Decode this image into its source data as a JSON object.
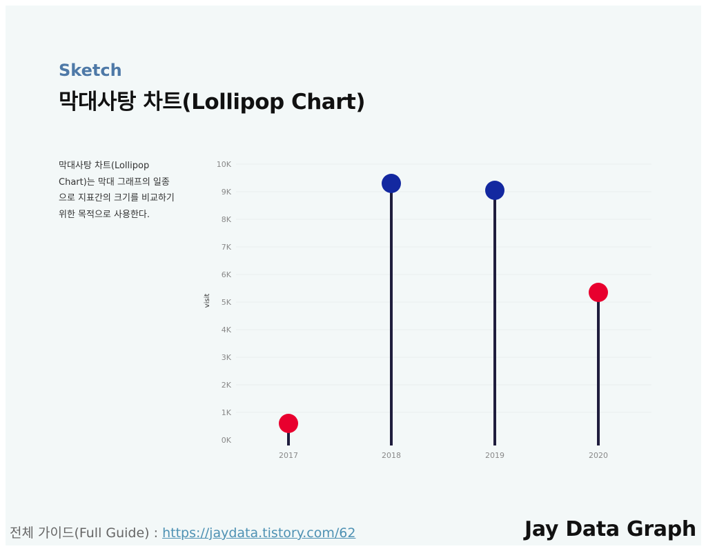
{
  "header": {
    "kicker": "Sketch",
    "title": "막대사탕 차트(Lollipop Chart)"
  },
  "description": "막대사탕 차트(Lollipop Chart)는 막대 그래프의 일종으로 지표간의 크기를 비교하기 위한 목적으로 사용한다.",
  "footer": {
    "guide_prefix": "전체 가이드(Full Guide) : ",
    "guide_link": "https://jaydata.tistory.com/62",
    "brand": "Jay Data Graph"
  },
  "colors": {
    "stem": "#1f1d3d",
    "high": "#1328a0",
    "low": "#e8002e",
    "axis_text": "#888888",
    "gridline": "#e9eeee"
  },
  "chart_data": {
    "type": "lollipop",
    "categories": [
      "2017",
      "2018",
      "2019",
      "2020"
    ],
    "values": [
      600,
      9300,
      9050,
      5350
    ],
    "point_colors": [
      "#e8002e",
      "#1328a0",
      "#1328a0",
      "#e8002e"
    ],
    "ylabel": "visit",
    "ylim": [
      0,
      10000
    ],
    "yticks": [
      0,
      1000,
      2000,
      3000,
      4000,
      5000,
      6000,
      7000,
      8000,
      9000,
      10000
    ],
    "ytick_labels": [
      "0K",
      "1K",
      "2K",
      "3K",
      "4K",
      "5K",
      "6K",
      "7K",
      "8K",
      "9K",
      "10K"
    ],
    "grid": true,
    "legend": "none"
  }
}
